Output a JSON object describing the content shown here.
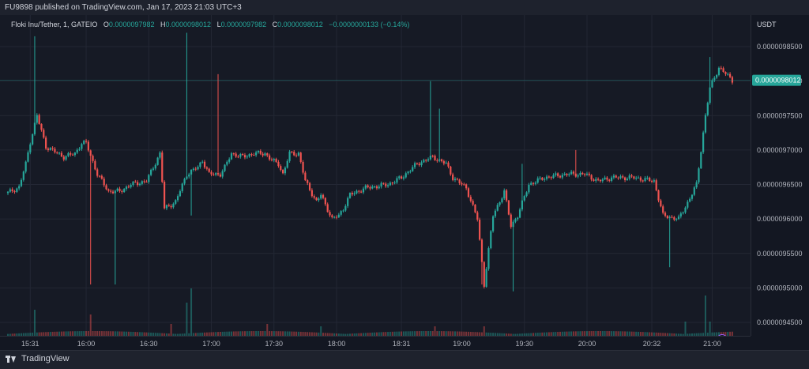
{
  "header": {
    "published": "FU9898 published on TradingView.com, Jan 17, 2023 21:03 UTC+3"
  },
  "legend": {
    "symbol": "Floki Inu/Tether, 1, GATEIO",
    "o_label": "O",
    "o_value": "0.0000097982",
    "h_label": "H",
    "h_value": "0.0000098012",
    "l_label": "L",
    "l_value": "0.0000097982",
    "c_label": "C",
    "c_value": "0.0000098012",
    "change": "−0.0000000133 (−0.14%)"
  },
  "footer": {
    "brand": "TradingView"
  },
  "colors": {
    "up": "#26a69a",
    "down": "#ef5350",
    "background": "#161a25",
    "grid": "#232734",
    "text": "#b2b5be"
  },
  "chart_data": {
    "type": "candlestick",
    "title": "Floki Inu/Tether, 1, GATEIO",
    "currency": "USDT",
    "current_price_label": "0.0000098012",
    "y_ticks": [
      "0.0000098500",
      "0.0000098000",
      "0.0000097500",
      "0.0000097000",
      "0.0000096500",
      "0.0000096000",
      "0.0000095500",
      "0.0000095000",
      "0.0000094500"
    ],
    "y_tick_values": [
      98500,
      98000,
      97500,
      97000,
      96500,
      96000,
      95500,
      95000,
      94500
    ],
    "y_scale_note": "prices in units of 1e-10 USDT",
    "ylim": [
      94400,
      98900
    ],
    "x_ticks": [
      "15:31",
      "16:00",
      "16:30",
      "17:00",
      "17:30",
      "18:00",
      "18:31",
      "19:00",
      "19:30",
      "20:00",
      "20:32",
      "21:00"
    ],
    "x_tick_index": [
      10,
      35,
      63,
      91,
      119,
      147,
      176,
      203,
      231,
      259,
      288,
      315
    ],
    "candles_count": 325,
    "anchors": [
      [
        0,
        96380
      ],
      [
        5,
        96460
      ],
      [
        8,
        96800
      ],
      [
        10,
        97120
      ],
      [
        13,
        97500
      ],
      [
        17,
        97050
      ],
      [
        25,
        96900
      ],
      [
        30,
        96950
      ],
      [
        33,
        97100
      ],
      [
        35,
        97100
      ],
      [
        40,
        96650
      ],
      [
        45,
        96400
      ],
      [
        50,
        96400
      ],
      [
        55,
        96500
      ],
      [
        62,
        96550
      ],
      [
        68,
        96950
      ],
      [
        70,
        96150
      ],
      [
        75,
        96250
      ],
      [
        80,
        96650
      ],
      [
        85,
        96750
      ],
      [
        87,
        96850
      ],
      [
        90,
        96650
      ],
      [
        95,
        96650
      ],
      [
        97,
        96750
      ],
      [
        100,
        96950
      ],
      [
        105,
        96900
      ],
      [
        110,
        96950
      ],
      [
        115,
        96950
      ],
      [
        118,
        96850
      ],
      [
        121,
        96800
      ],
      [
        123,
        96650
      ],
      [
        126,
        96950
      ],
      [
        130,
        96950
      ],
      [
        133,
        96550
      ],
      [
        138,
        96250
      ],
      [
        140,
        96350
      ],
      [
        145,
        96000
      ],
      [
        148,
        96050
      ],
      [
        150,
        96150
      ],
      [
        153,
        96350
      ],
      [
        160,
        96450
      ],
      [
        170,
        96500
      ],
      [
        176,
        96600
      ],
      [
        183,
        96800
      ],
      [
        190,
        96900
      ],
      [
        196,
        96800
      ],
      [
        199,
        96600
      ],
      [
        205,
        96450
      ],
      [
        210,
        96000
      ],
      [
        213,
        95050
      ],
      [
        217,
        96050
      ],
      [
        222,
        96400
      ],
      [
        225,
        95900
      ],
      [
        228,
        96050
      ],
      [
        233,
        96500
      ],
      [
        240,
        96600
      ],
      [
        250,
        96650
      ],
      [
        258,
        96650
      ],
      [
        264,
        96550
      ],
      [
        270,
        96600
      ],
      [
        280,
        96600
      ],
      [
        289,
        96550
      ],
      [
        293,
        96050
      ],
      [
        300,
        96000
      ],
      [
        305,
        96300
      ],
      [
        308,
        96500
      ],
      [
        310,
        97000
      ],
      [
        312,
        97500
      ],
      [
        314,
        97900
      ],
      [
        316,
        98050
      ],
      [
        318,
        98200
      ],
      [
        324,
        98012
      ]
    ],
    "spikes": [
      {
        "i": 12,
        "hi": 98650
      },
      {
        "i": 37,
        "lo": 95050
      },
      {
        "i": 48,
        "lo": 95050
      },
      {
        "i": 80,
        "hi": 98700
      },
      {
        "i": 82,
        "lo": 96050
      },
      {
        "i": 94,
        "hi": 98100
      },
      {
        "i": 189,
        "hi": 98000
      },
      {
        "i": 193,
        "hi": 97600
      },
      {
        "i": 212,
        "lo": 95050
      },
      {
        "i": 226,
        "lo": 94950
      },
      {
        "i": 230,
        "hi": 96800
      },
      {
        "i": 254,
        "hi": 97000
      },
      {
        "i": 296,
        "lo": 95300
      },
      {
        "i": 314,
        "hi": 98350
      }
    ],
    "volume_spikes": [
      {
        "i": 12,
        "v": 0.55
      },
      {
        "i": 37,
        "v": 0.45
      },
      {
        "i": 73,
        "v": 0.25
      },
      {
        "i": 80,
        "v": 0.7
      },
      {
        "i": 82,
        "v": 1.0
      },
      {
        "i": 116,
        "v": 0.25
      },
      {
        "i": 140,
        "v": 0.2
      },
      {
        "i": 191,
        "v": 0.2
      },
      {
        "i": 213,
        "v": 0.2
      },
      {
        "i": 303,
        "v": 0.3
      },
      {
        "i": 312,
        "v": 0.85
      },
      {
        "i": 314,
        "v": 0.3
      }
    ]
  }
}
